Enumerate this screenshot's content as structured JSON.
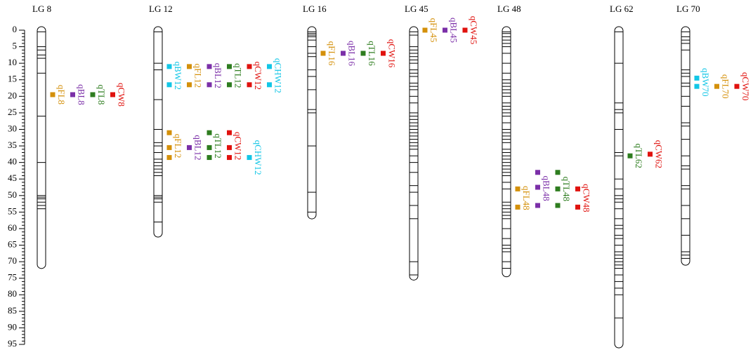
{
  "chart_data": {
    "type": "linkage-map",
    "ylim": [
      0,
      95
    ],
    "yticks": [
      0,
      5,
      10,
      15,
      20,
      25,
      30,
      35,
      40,
      45,
      50,
      55,
      60,
      65,
      70,
      75,
      80,
      85,
      90,
      95
    ],
    "groups": [
      {
        "name": "LG 8",
        "length": 71,
        "markers": [
          0.5,
          5,
          6,
          7.5,
          8.5,
          13,
          26,
          40,
          50,
          50.5,
          51,
          52,
          53,
          54
        ],
        "qtl_clusters": [
          [
            {
              "name": "qFL8",
              "color": "#d4900a",
              "positions": [
                19.5
              ]
            },
            {
              "name": "qBL8",
              "color": "#7b2fa8",
              "positions": [
                19.5
              ]
            },
            {
              "name": "qTL8",
              "color": "#2e7d1f",
              "positions": [
                19.5
              ]
            },
            {
              "name": "qCW8",
              "color": "#e0120e",
              "positions": [
                19.5
              ]
            }
          ]
        ]
      },
      {
        "name": "LG 12",
        "length": 61.5,
        "markers": [
          0.5,
          10,
          12,
          21,
          30,
          34,
          35,
          37,
          39,
          40,
          41,
          42,
          43,
          44,
          50,
          50.5,
          51,
          52,
          58
        ],
        "qtl_clusters": [
          [
            {
              "name": "qBW12",
              "color": "#12c6e6",
              "positions": [
                11,
                16.5
              ]
            },
            {
              "name": "qFL12",
              "color": "#d4900a",
              "positions": [
                11,
                16.5
              ]
            },
            {
              "name": "qBL12",
              "color": "#7b2fa8",
              "positions": [
                11,
                16.5
              ]
            },
            {
              "name": "qTL12",
              "color": "#2e7d1f",
              "positions": [
                11,
                16.5
              ]
            },
            {
              "name": "qCW12",
              "color": "#e0120e",
              "positions": [
                11,
                16.5
              ]
            },
            {
              "name": "qCHW12",
              "color": "#12c6e6",
              "positions": [
                11,
                16.5
              ]
            }
          ],
          [
            {
              "name": "qFL12",
              "color": "#d4900a",
              "positions": [
                31,
                35.5,
                38.5
              ]
            },
            {
              "name": "qBL12",
              "color": "#7b2fa8",
              "positions": [
                35.5
              ]
            },
            {
              "name": "qTL12",
              "color": "#2e7d1f",
              "positions": [
                31,
                35.5,
                38.5
              ]
            },
            {
              "name": "qCW12",
              "color": "#e0120e",
              "positions": [
                31,
                35.5,
                38.5
              ]
            },
            {
              "name": "qCHW12",
              "color": "#12c6e6",
              "positions": [
                38.5
              ]
            }
          ]
        ]
      },
      {
        "name": "LG 16",
        "length": 56,
        "markers": [
          0.5,
          1,
          1.5,
          2,
          3,
          5,
          7,
          8,
          12,
          14,
          18,
          24,
          25,
          35,
          49,
          55
        ],
        "qtl_clusters": [
          [
            {
              "name": "qFL16",
              "color": "#d4900a",
              "positions": [
                7
              ]
            },
            {
              "name": "qBL16",
              "color": "#7b2fa8",
              "positions": [
                7
              ]
            },
            {
              "name": "qTL16",
              "color": "#2e7d1f",
              "positions": [
                7
              ]
            },
            {
              "name": "qCW16",
              "color": "#e0120e",
              "positions": [
                7
              ]
            }
          ]
        ]
      },
      {
        "name": "LG 45",
        "length": 74.5,
        "markers": [
          0.5,
          1.5,
          5,
          6,
          7,
          8,
          9,
          10,
          12,
          13,
          14,
          16,
          17,
          18,
          20,
          22,
          25,
          26,
          27,
          28,
          29,
          30,
          31,
          32,
          33,
          34,
          35,
          36,
          38,
          40,
          43,
          47,
          49,
          53,
          57,
          70,
          74
        ],
        "qtl_clusters": [
          [
            {
              "name": "qFL45",
              "color": "#d4900a",
              "positions": [
                0
              ]
            },
            {
              "name": "qBL45",
              "color": "#7b2fa8",
              "positions": [
                0
              ]
            },
            {
              "name": "qCW45",
              "color": "#e0120e",
              "positions": [
                0
              ]
            }
          ]
        ]
      },
      {
        "name": "LG 48",
        "length": 73.5,
        "markers": [
          0.5,
          1,
          2,
          3,
          4,
          5,
          7,
          10,
          13,
          15,
          16,
          17,
          18,
          19,
          20,
          22,
          23,
          24,
          25,
          26,
          28,
          30,
          31,
          32,
          33,
          34,
          36,
          37,
          38,
          39,
          40,
          41,
          42,
          43,
          44,
          46,
          48,
          52,
          53,
          54,
          55,
          56,
          57,
          60,
          63,
          65,
          66,
          67,
          70,
          72
        ],
        "qtl_clusters": [
          [
            {
              "name": "qFL48",
              "color": "#d4900a",
              "positions": [
                48,
                53.5
              ]
            },
            {
              "name": "qBL48",
              "color": "#7b2fa8",
              "positions": [
                43,
                47.5,
                53
              ]
            },
            {
              "name": "qTL48",
              "color": "#2e7d1f",
              "positions": [
                43,
                48,
                53
              ]
            },
            {
              "name": "qCW48",
              "color": "#e0120e",
              "positions": [
                48,
                53.5
              ]
            }
          ]
        ]
      },
      {
        "name": "LG 62",
        "length": 95,
        "markers": [
          0.5,
          10,
          22,
          24,
          25,
          30,
          37,
          38,
          45,
          48,
          50,
          51,
          52,
          54,
          57,
          59,
          60,
          62,
          63,
          65,
          67,
          68,
          69,
          70,
          71,
          72,
          74,
          76,
          78,
          80,
          87
        ],
        "qtl_clusters": [
          [
            {
              "name": "qTL62",
              "color": "#2e7d1f",
              "positions": [
                38
              ]
            },
            {
              "name": "qCW62",
              "color": "#e0120e",
              "positions": [
                37.5
              ]
            }
          ]
        ]
      },
      {
        "name": "LG 70",
        "length": 70,
        "markers": [
          0.5,
          2,
          3,
          4,
          6,
          12,
          13,
          14,
          16,
          17,
          20,
          23,
          28,
          29,
          33,
          38,
          41,
          42,
          47,
          48,
          53,
          57,
          62,
          67,
          68,
          69
        ],
        "qtl_clusters": [
          [
            {
              "name": "qBW70",
              "color": "#12c6e6",
              "positions": [
                14.5,
                17
              ]
            },
            {
              "name": "qFL70",
              "color": "#d4900a",
              "positions": [
                17
              ]
            },
            {
              "name": "qCW70",
              "color": "#e0120e",
              "positions": [
                17
              ]
            }
          ]
        ]
      }
    ]
  }
}
